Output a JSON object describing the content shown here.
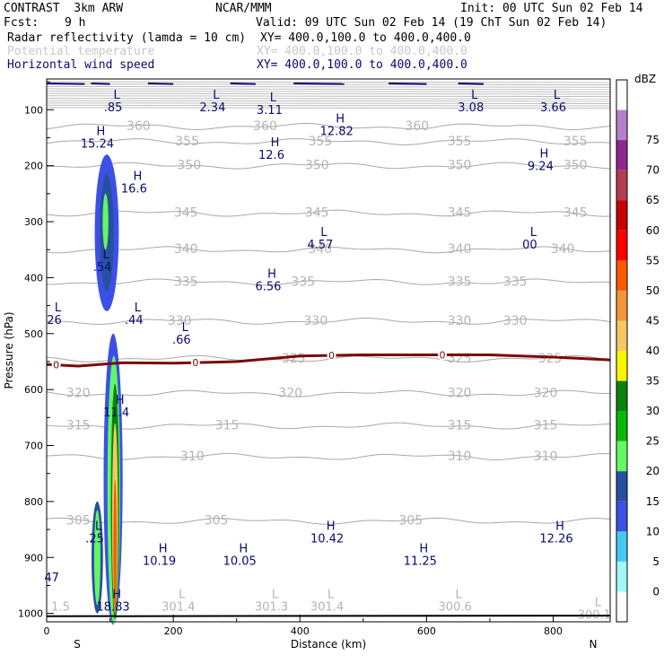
{
  "header": {
    "model": "CONTRAST  3km ARW",
    "org": "NCAR/MMM",
    "init": "Init: 00 UTC Sun 02 Feb 14",
    "fcst_label": "Fcst:",
    "fcst_value": "9 h",
    "valid": "Valid: 09 UTC Sun 02 Feb 14 (19 ChT Sun 02 Feb 14)"
  },
  "fields": [
    {
      "name": "Radar reflectivity (lamda = 10 cm)",
      "xy": "XY= 400.0,100.0 to 400.0,400.0",
      "color": "#000000"
    },
    {
      "name": "Potential temperature",
      "xy": "XY= 400.0,100.0 to 400.0,400.0",
      "color": "#c8c8c8"
    },
    {
      "name": "Horizontal wind speed",
      "xy": "XY= 400.0,100.0 to 400.0,400.0",
      "color": "#0a0a6e"
    }
  ],
  "chart_data": {
    "type": "cross-section contour",
    "xlabel": "Distance (km)",
    "ylabel": "Pressure (hPa)",
    "xlim": [
      0,
      890
    ],
    "ylim": [
      1015,
      45
    ],
    "x_ticks": [
      0,
      200,
      400,
      600,
      800
    ],
    "y_ticks": [
      100,
      200,
      300,
      400,
      500,
      600,
      700,
      800,
      900,
      1000
    ],
    "x_end_labels": {
      "left": "S",
      "right": "N"
    },
    "colorbar": {
      "unit": "dBZ",
      "levels": [
        0,
        5,
        10,
        15,
        20,
        25,
        30,
        35,
        40,
        45,
        50,
        55,
        60,
        65,
        70,
        75
      ],
      "colors": [
        "#ffffff",
        "#9ff8f6",
        "#46c8f5",
        "#3c50e6",
        "#2850a0",
        "#63f763",
        "#08b808",
        "#0c820c",
        "#faf500",
        "#f5c864",
        "#f5963c",
        "#fa5a00",
        "#ff0000",
        "#c80000",
        "#b43c50",
        "#8c2890",
        "#b482c8",
        "#ffffff"
      ]
    },
    "theta_contours": [
      {
        "value": 360,
        "p": 130,
        "labels_x": [
          145,
          345,
          585
        ]
      },
      {
        "value": 355,
        "p": 157,
        "labels_x": [
          222,
          432,
          652,
          835
        ]
      },
      {
        "value": 350,
        "p": 200,
        "labels_x": [
          225,
          427,
          652,
          835
        ]
      },
      {
        "value": 345,
        "p": 285,
        "labels_x": [
          220,
          427,
          652,
          835
        ]
      },
      {
        "value": 340,
        "p": 350,
        "labels_x": [
          220,
          432,
          652,
          815
        ]
      },
      {
        "value": 335,
        "p": 408,
        "labels_x": [
          220,
          405,
          652,
          740
        ]
      },
      {
        "value": 330,
        "p": 478,
        "labels_x": [
          210,
          425,
          652,
          740
        ]
      },
      {
        "value": 325,
        "p": 545,
        "labels_x": [
          390,
          652,
          795
        ]
      },
      {
        "value": 320,
        "p": 607,
        "labels_x": [
          50,
          385,
          652,
          788
        ]
      },
      {
        "value": 315,
        "p": 665,
        "labels_x": [
          50,
          285,
          652,
          788
        ]
      },
      {
        "value": 310,
        "p": 720,
        "labels_x": [
          230,
          652,
          788
        ]
      },
      {
        "value": 305,
        "p": 835,
        "labels_x": [
          50,
          268,
          575
        ]
      }
    ],
    "freezing_level": {
      "label": "0",
      "color": "#780a0a",
      "x": [
        0,
        50,
        120,
        200,
        300,
        400,
        500,
        620,
        700,
        800,
        890
      ],
      "p": [
        555,
        558,
        552,
        553,
        550,
        540,
        538,
        538,
        538,
        542,
        547
      ],
      "labels_x": [
        15,
        235,
        450,
        625
      ]
    },
    "wind_extrema": [
      {
        "type": "L",
        "value": ".85",
        "x": 105,
        "p": 90
      },
      {
        "type": "L",
        "value": "2.34",
        "x": 262,
        "p": 90
      },
      {
        "type": "L",
        "value": "3.11",
        "x": 352,
        "p": 95
      },
      {
        "type": "L",
        "value": "3.08",
        "x": 670,
        "p": 90
      },
      {
        "type": "L",
        "value": "3.66",
        "x": 800,
        "p": 90
      },
      {
        "type": "H",
        "value": "15.24",
        "x": 80,
        "p": 155
      },
      {
        "type": "H",
        "value": "12.82",
        "x": 458,
        "p": 132
      },
      {
        "type": "H",
        "value": "12.6",
        "x": 355,
        "p": 175
      },
      {
        "type": "H",
        "value": "16.6",
        "x": 138,
        "p": 235
      },
      {
        "type": "H",
        "value": "9.24",
        "x": 780,
        "p": 195
      },
      {
        "type": "L",
        "value": "4.57",
        "x": 432,
        "p": 335
      },
      {
        "type": "L",
        "value": "00",
        "x": 763,
        "p": 335
      },
      {
        "type": "L",
        "value": ".54",
        "x": 88,
        "p": 375
      },
      {
        "type": "H",
        "value": "6.56",
        "x": 350,
        "p": 410
      },
      {
        "type": "L",
        "value": "26",
        "x": 12,
        "p": 470
      },
      {
        "type": "L",
        "value": ".44",
        "x": 138,
        "p": 470
      },
      {
        "type": "L",
        "value": ".66",
        "x": 213,
        "p": 505
      },
      {
        "type": "H",
        "value": "11.4",
        "x": 110,
        "p": 635
      },
      {
        "type": "L",
        "value": ".25",
        "x": 76,
        "p": 860
      },
      {
        "type": "H",
        "value": "10.42",
        "x": 443,
        "p": 860
      },
      {
        "type": "H",
        "value": "12.26",
        "x": 805,
        "p": 860
      },
      {
        "type": "H",
        "value": "10.19",
        "x": 178,
        "p": 900
      },
      {
        "type": "H",
        "value": "10.05",
        "x": 305,
        "p": 900
      },
      {
        "type": "H",
        "value": "11.25",
        "x": 590,
        "p": 900
      },
      {
        "type": "",
        "value": "47",
        "x": 8,
        "p": 930
      }
    ],
    "surface_theta_labels": [
      {
        "type": "",
        "value": "1.5",
        "x": 22,
        "p": 985
      },
      {
        "type": "H",
        "value": "18.83",
        "x": 105,
        "p": 985
      },
      {
        "type": "L",
        "value": "301.4",
        "x": 208,
        "p": 985
      },
      {
        "type": "L",
        "value": "301.3",
        "x": 355,
        "p": 985
      },
      {
        "type": "L",
        "value": "301.4",
        "x": 443,
        "p": 985
      },
      {
        "type": "L",
        "value": "300.6",
        "x": 645,
        "p": 985
      },
      {
        "type": "L",
        "value": "300.1",
        "x": 865,
        "p": 1000
      }
    ],
    "reflectivity_cells": [
      {
        "x": 95,
        "p": 320,
        "w": 38,
        "h": 280,
        "dbz": 10
      },
      {
        "x": 95,
        "p": 320,
        "w": 22,
        "h": 210,
        "dbz": 15
      },
      {
        "x": 93,
        "p": 300,
        "w": 9,
        "h": 100,
        "dbz": 20
      },
      {
        "x": 105,
        "p": 760,
        "w": 30,
        "h": 520,
        "dbz": 10
      },
      {
        "x": 106,
        "p": 780,
        "w": 20,
        "h": 480,
        "dbz": 20
      },
      {
        "x": 108,
        "p": 800,
        "w": 13,
        "h": 420,
        "dbz": 30
      },
      {
        "x": 108,
        "p": 830,
        "w": 9,
        "h": 340,
        "dbz": 40
      },
      {
        "x": 108,
        "p": 880,
        "w": 5,
        "h": 240,
        "dbz": 50
      },
      {
        "x": 80,
        "p": 900,
        "w": 18,
        "h": 200,
        "dbz": 15
      },
      {
        "x": 80,
        "p": 900,
        "w": 10,
        "h": 170,
        "dbz": 20
      }
    ]
  }
}
